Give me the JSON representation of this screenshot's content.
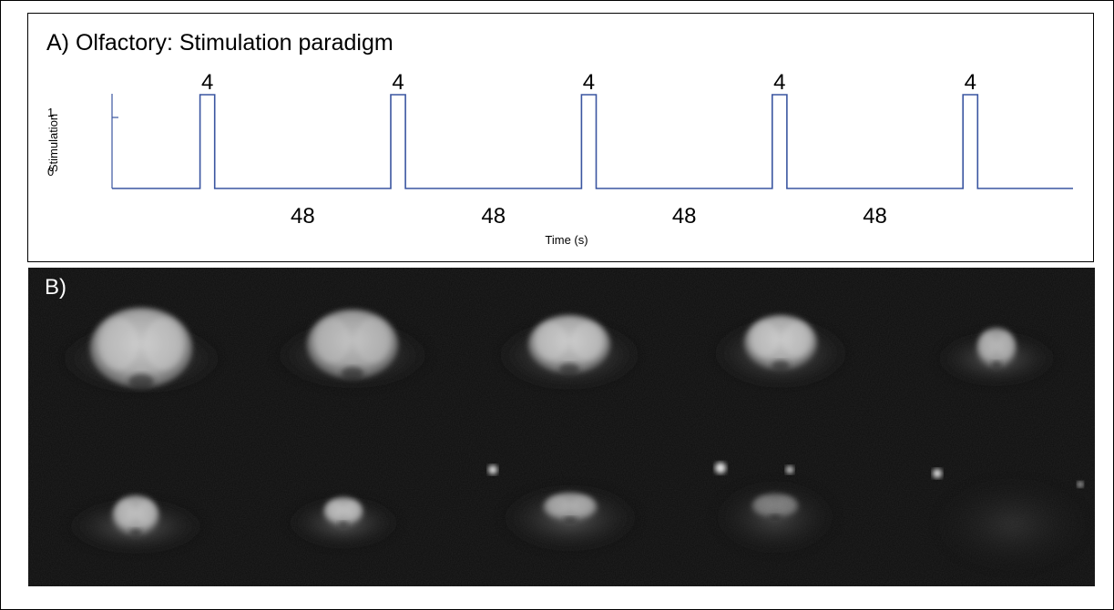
{
  "panel_a": {
    "title": "A) Olfactory: Stimulation paradigm",
    "chart_data": {
      "type": "line",
      "title": "A) Olfactory: Stimulation paradigm",
      "xlabel": "Time (s)",
      "ylabel": "Stimulation",
      "y_ticks": [
        "1",
        "0"
      ],
      "on_duration_labels": [
        "4",
        "4",
        "4",
        "4",
        "4"
      ],
      "off_duration_labels": [
        "48",
        "48",
        "48",
        "48"
      ],
      "series": [
        {
          "values_description_free": true,
          "x": [
            0,
            24,
            24,
            28,
            28,
            76,
            76,
            80,
            80,
            128,
            128,
            132,
            132,
            180,
            180,
            184,
            184,
            232,
            232,
            236,
            236,
            262
          ],
          "y": [
            0,
            0,
            1,
            1,
            0,
            0,
            1,
            1,
            0,
            0,
            1,
            1,
            0,
            0,
            1,
            1,
            0,
            0,
            1,
            1,
            0,
            0
          ]
        }
      ],
      "xlim": [
        0,
        262
      ],
      "ylim": [
        0,
        1
      ],
      "line_color": "#3a55a0",
      "grid": false
    }
  },
  "panel_b": {
    "title": "B)",
    "background_color": "#0d0d0d"
  }
}
